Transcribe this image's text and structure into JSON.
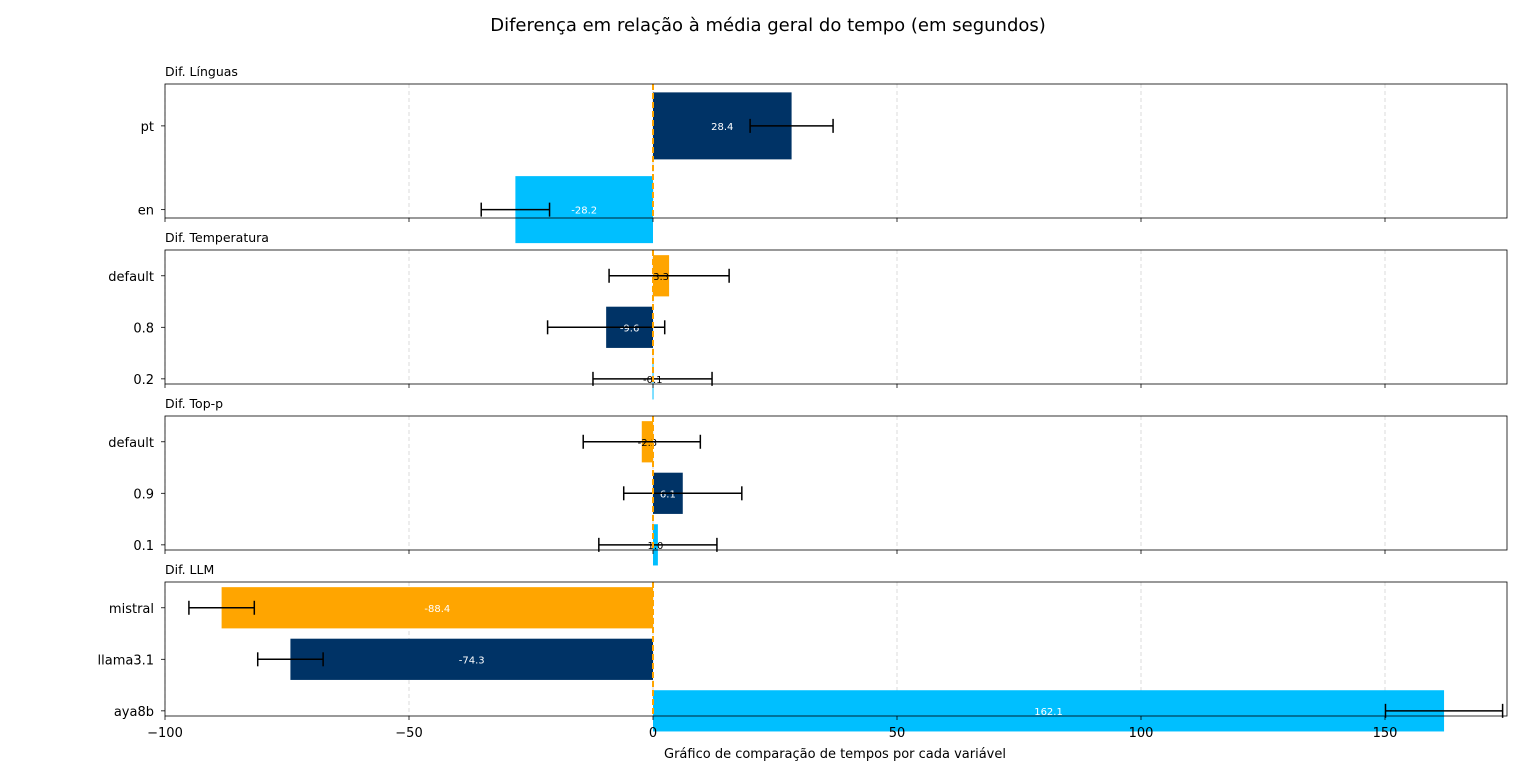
{
  "title": "Diferença em relação à média geral do tempo (em segundos)",
  "chart_data": {
    "type": "bar",
    "orientation": "horizontal",
    "title": "Diferença em relação à média geral do tempo (em segundos)",
    "xlabel": "Gráfico de comparação de tempos por cada variável",
    "xlim": [
      -100,
      175
    ],
    "xticks": [
      -100,
      -50,
      0,
      50,
      100,
      150
    ],
    "xtick_labels": [
      "−100",
      "−50",
      "0",
      "50",
      "100",
      "150"
    ],
    "grid": "x dashed",
    "reference_line": {
      "x": 0,
      "color": "#FFA500",
      "style": "dashed"
    },
    "panels": [
      {
        "title": "Dif. Línguas",
        "categories": [
          "pt",
          "en"
        ],
        "values": [
          28.4,
          -28.2
        ],
        "labels": [
          "28.4",
          "-28.2"
        ],
        "error_centers": [
          28.4,
          -28.2
        ],
        "errors": [
          8.5,
          7.0
        ],
        "colors": [
          "#003366",
          "#00BFFF"
        ],
        "label_colors": [
          "#ffffff",
          "#ffffff"
        ]
      },
      {
        "title": "Dif. Temperatura",
        "categories": [
          "default",
          "0.8",
          "0.2"
        ],
        "values": [
          3.3,
          -9.6,
          -0.1
        ],
        "labels": [
          "3.3",
          "-9.6",
          "-0.1"
        ],
        "error_centers": [
          3.3,
          -9.6,
          -0.1
        ],
        "errors": [
          12.3,
          12.0,
          12.2
        ],
        "colors": [
          "#FFA500",
          "#003366",
          "#00BFFF"
        ],
        "label_colors": [
          "#000000",
          "#ffffff",
          "#000000"
        ]
      },
      {
        "title": "Dif. Top-p",
        "categories": [
          "default",
          "0.9",
          "0.1"
        ],
        "values": [
          -2.3,
          6.1,
          1.0
        ],
        "labels": [
          "-2.3",
          "6.1",
          "1.0"
        ],
        "error_centers": [
          -2.3,
          6.1,
          1.0
        ],
        "errors": [
          12.0,
          12.1,
          12.1
        ],
        "colors": [
          "#FFA500",
          "#003366",
          "#00BFFF"
        ],
        "label_colors": [
          "#000000",
          "#ffffff",
          "#000000"
        ]
      },
      {
        "title": "Dif. LLM",
        "categories": [
          "mistral",
          "llama3.1",
          "aya8b"
        ],
        "values": [
          -88.4,
          -74.3,
          162.1
        ],
        "labels": [
          "-88.4",
          "-74.3",
          "162.1"
        ],
        "error_centers": [
          -88.4,
          -74.3,
          162.1
        ],
        "errors": [
          6.7,
          6.7,
          12.0
        ],
        "colors": [
          "#FFA500",
          "#003366",
          "#00BFFF"
        ],
        "label_colors": [
          "#ffffff",
          "#ffffff",
          "#ffffff"
        ]
      }
    ]
  }
}
